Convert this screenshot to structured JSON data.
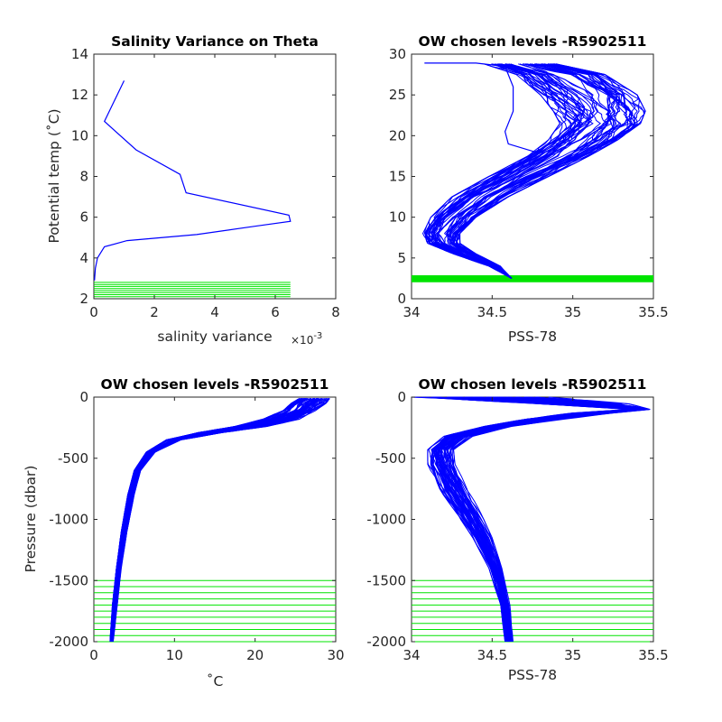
{
  "figure": {
    "colors": {
      "profile": "#0000ff",
      "levels": "#00e400",
      "axes": "#262626",
      "background": "#ffffff"
    }
  },
  "chart_data": [
    {
      "type": "line",
      "title": "Salinity Variance on Theta",
      "xlabel": "salinity variance",
      "x_exponent_base": "×10",
      "x_exponent_power": "-3",
      "ylabel": "Potential temp (˚C)",
      "xlim": [
        0,
        8
      ],
      "ylim": [
        2,
        14
      ],
      "x_ticks": [
        "0",
        "2",
        "4",
        "6",
        "8"
      ],
      "y_ticks": [
        "2",
        "4",
        "6",
        "8",
        "10",
        "12",
        "14"
      ],
      "grid": false,
      "series": [
        {
          "color": "#0000ff",
          "points": [
            [
              1.0,
              12.7
            ],
            [
              0.35,
              10.7
            ],
            [
              1.4,
              9.3
            ],
            [
              2.85,
              8.1
            ],
            [
              3.05,
              7.2
            ],
            [
              6.45,
              6.1
            ],
            [
              6.5,
              5.8
            ],
            [
              5.3,
              5.55
            ],
            [
              3.4,
              5.15
            ],
            [
              1.1,
              4.85
            ],
            [
              0.35,
              4.55
            ],
            [
              0.12,
              4.0
            ],
            [
              0.05,
              3.5
            ],
            [
              0.02,
              2.9
            ]
          ]
        }
      ],
      "levels": {
        "orientation": "horizontal",
        "color": "#00e400",
        "values": [
          2.1,
          2.2,
          2.3,
          2.4,
          2.5,
          2.6,
          2.7,
          2.8
        ],
        "extent": [
          0,
          6.5
        ]
      }
    },
    {
      "type": "line",
      "title": "OW chosen levels -R5902511",
      "xlabel": "PSS-78",
      "ylabel": "",
      "xlim": [
        34,
        35.5
      ],
      "ylim": [
        0,
        30
      ],
      "x_ticks": [
        "34",
        "34.5",
        "35",
        "35.5"
      ],
      "y_ticks": [
        "0",
        "5",
        "10",
        "15",
        "20",
        "25",
        "30"
      ],
      "grid": false,
      "profile_envelope": {
        "color": "#0000ff",
        "count": 60,
        "left": [
          [
            34.62,
            2.5
          ],
          [
            34.48,
            4.0
          ],
          [
            34.26,
            5.5
          ],
          [
            34.1,
            6.8
          ],
          [
            34.07,
            8.0
          ],
          [
            34.12,
            10.0
          ],
          [
            34.25,
            12.5
          ],
          [
            34.48,
            15.0
          ],
          [
            34.72,
            17.5
          ],
          [
            34.85,
            19.5
          ],
          [
            34.92,
            21.5
          ],
          [
            34.88,
            23.0
          ],
          [
            34.8,
            25.0
          ],
          [
            34.65,
            27.5
          ],
          [
            34.45,
            28.8
          ]
        ],
        "right": [
          [
            34.62,
            2.5
          ],
          [
            34.55,
            4.0
          ],
          [
            34.4,
            5.5
          ],
          [
            34.3,
            6.8
          ],
          [
            34.3,
            8.0
          ],
          [
            34.4,
            10.0
          ],
          [
            34.6,
            12.5
          ],
          [
            34.85,
            15.0
          ],
          [
            35.1,
            17.5
          ],
          [
            35.28,
            19.5
          ],
          [
            35.42,
            21.5
          ],
          [
            35.45,
            23.0
          ],
          [
            35.4,
            25.0
          ],
          [
            35.2,
            27.5
          ],
          [
            34.85,
            29.0
          ]
        ]
      },
      "outliers": [
        {
          "color": "#0000ff",
          "points": [
            [
              34.08,
              28.9
            ],
            [
              34.4,
              28.9
            ],
            [
              34.58,
              28.5
            ],
            [
              34.63,
              26.0
            ],
            [
              34.63,
              23.0
            ],
            [
              34.58,
              20.5
            ],
            [
              34.6,
              19.0
            ],
            [
              34.8,
              17.8
            ]
          ]
        }
      ],
      "levels": {
        "orientation": "horizontal",
        "color": "#00e400",
        "values": [
          2.1,
          2.2,
          2.3,
          2.4,
          2.5,
          2.6,
          2.7,
          2.8
        ],
        "extent": [
          34,
          35.5
        ]
      }
    },
    {
      "type": "line",
      "title": "OW chosen levels -R5902511",
      "xlabel": "˚C",
      "ylabel": "Pressure (dbar)",
      "xlim": [
        0,
        30
      ],
      "ylim": [
        -2000,
        0
      ],
      "x_ticks": [
        "0",
        "10",
        "20",
        "30"
      ],
      "y_ticks": [
        "-2000",
        "-1500",
        "-1000",
        "-500",
        "0"
      ],
      "grid": false,
      "profile_envelope": {
        "color": "#0000ff",
        "count": 60,
        "left": [
          [
            2.0,
            -2000
          ],
          [
            2.3,
            -1700
          ],
          [
            2.8,
            -1400
          ],
          [
            3.4,
            -1100
          ],
          [
            4.2,
            -800
          ],
          [
            5.0,
            -600
          ],
          [
            6.5,
            -450
          ],
          [
            9.0,
            -350
          ],
          [
            13.0,
            -290
          ],
          [
            17.5,
            -240
          ],
          [
            21.0,
            -180
          ],
          [
            23.5,
            -110
          ],
          [
            24.5,
            -50
          ],
          [
            25.5,
            -10
          ]
        ],
        "right": [
          [
            2.4,
            -2000
          ],
          [
            2.9,
            -1700
          ],
          [
            3.4,
            -1400
          ],
          [
            4.1,
            -1100
          ],
          [
            5.0,
            -800
          ],
          [
            5.8,
            -600
          ],
          [
            7.6,
            -450
          ],
          [
            10.8,
            -350
          ],
          [
            16.0,
            -290
          ],
          [
            21.5,
            -240
          ],
          [
            25.5,
            -180
          ],
          [
            27.5,
            -110
          ],
          [
            28.8,
            -50
          ],
          [
            29.3,
            -10
          ]
        ]
      },
      "levels": {
        "orientation": "horizontal",
        "color": "#00e400",
        "values": [
          -1500,
          -1550,
          -1600,
          -1650,
          -1700,
          -1750,
          -1800,
          -1850,
          -1900,
          -1950,
          -2000
        ],
        "extent": [
          0,
          30
        ]
      }
    },
    {
      "type": "line",
      "title": "OW chosen levels -R5902511",
      "xlabel": "PSS-78",
      "ylabel": "",
      "xlim": [
        34,
        35.5
      ],
      "ylim": [
        -2000,
        0
      ],
      "x_ticks": [
        "34",
        "34.5",
        "35",
        "35.5"
      ],
      "y_ticks": [
        "-2000",
        "-1500",
        "-1000",
        "-500",
        "0"
      ],
      "grid": false,
      "profile_envelope": {
        "color": "#0000ff",
        "count": 60,
        "left": [
          [
            34.58,
            -2000
          ],
          [
            34.55,
            -1700
          ],
          [
            34.48,
            -1400
          ],
          [
            34.38,
            -1150
          ],
          [
            34.28,
            -950
          ],
          [
            34.17,
            -750
          ],
          [
            34.1,
            -550
          ],
          [
            34.1,
            -430
          ],
          [
            34.2,
            -320
          ],
          [
            34.45,
            -240
          ],
          [
            34.7,
            -180
          ],
          [
            35.0,
            -130
          ],
          [
            35.35,
            -100
          ],
          [
            34.8,
            -55
          ],
          [
            34.3,
            -20
          ],
          [
            34.0,
            0
          ]
        ],
        "right": [
          [
            34.63,
            -2000
          ],
          [
            34.61,
            -1700
          ],
          [
            34.56,
            -1400
          ],
          [
            34.5,
            -1150
          ],
          [
            34.43,
            -950
          ],
          [
            34.35,
            -750
          ],
          [
            34.27,
            -550
          ],
          [
            34.26,
            -430
          ],
          [
            34.38,
            -320
          ],
          [
            34.62,
            -240
          ],
          [
            34.95,
            -180
          ],
          [
            35.25,
            -130
          ],
          [
            35.48,
            -100
          ],
          [
            35.35,
            -55
          ],
          [
            35.05,
            -20
          ],
          [
            34.85,
            0
          ]
        ]
      },
      "levels": {
        "orientation": "horizontal",
        "color": "#00e400",
        "values": [
          -1500,
          -1550,
          -1600,
          -1650,
          -1700,
          -1750,
          -1800,
          -1850,
          -1900,
          -1950,
          -2000
        ],
        "extent": [
          34,
          35.5
        ]
      }
    }
  ]
}
